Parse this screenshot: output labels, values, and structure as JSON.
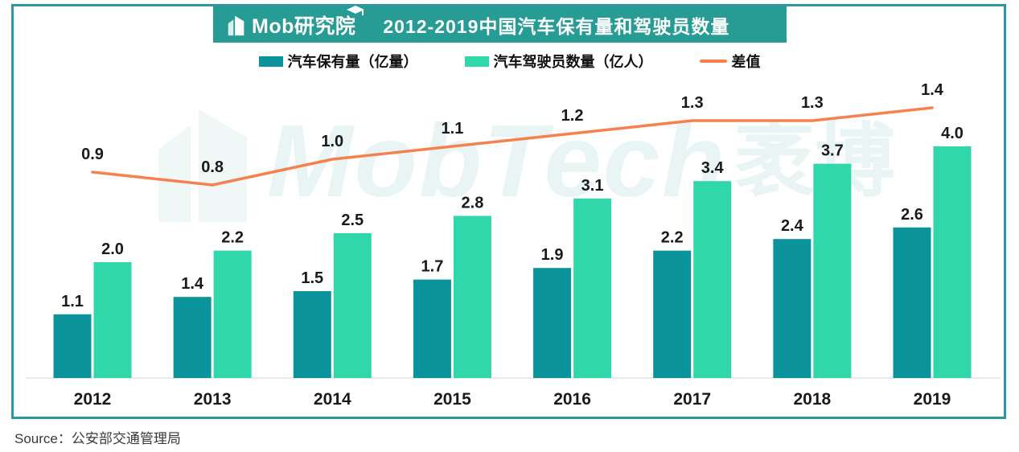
{
  "banner": {
    "logo_text": "Mob研究院",
    "title": "2012-2019中国汽车保有量和驾驶员数量",
    "background_color": "#279C95"
  },
  "chart_data": {
    "type": "bar",
    "categories": [
      "2012",
      "2013",
      "2014",
      "2015",
      "2016",
      "2017",
      "2018",
      "2019"
    ],
    "series": [
      {
        "name": "汽车保有量（亿量）",
        "color": "#0B939B",
        "values": [
          1.1,
          1.4,
          1.5,
          1.7,
          1.9,
          2.2,
          2.4,
          2.6
        ]
      },
      {
        "name": "汽车驾驶员数量（亿人）",
        "color": "#30D7AB",
        "values": [
          2.0,
          2.2,
          2.5,
          2.8,
          3.1,
          3.4,
          3.7,
          4.0
        ]
      }
    ],
    "line_series": {
      "name": "差值",
      "color": "#F5814E",
      "values": [
        0.9,
        0.8,
        1.0,
        1.1,
        1.2,
        1.3,
        1.3,
        1.4
      ]
    },
    "title": "2012-2019中国汽车保有量和驾驶员数量",
    "xlabel": "",
    "ylabel": "",
    "ylim": [
      0,
      4.5
    ],
    "grid": false,
    "legend_position": "top",
    "value_labels": true,
    "baseline_color": "#E4E4E4",
    "frame_color": "#2B98A1"
  },
  "watermark": {
    "text": "MobTech",
    "suffix": "袤博"
  },
  "source": {
    "label": "Source：公安部交通管理局"
  }
}
